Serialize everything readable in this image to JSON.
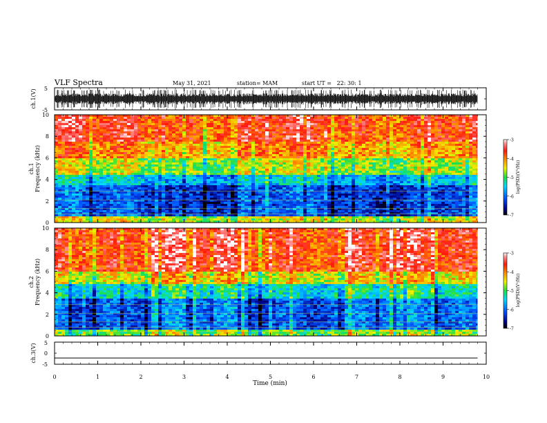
{
  "header": {
    "title": "VLF Spectra",
    "date": "May 31, 2021",
    "station": "station= MAM",
    "start": "start UT =   22: 30: 1"
  },
  "chart_data": [
    {
      "type": "line",
      "panel": "ch1-waveform",
      "ylabel": "ch.1(V)",
      "ylim": [
        -5,
        5
      ],
      "ytick_labels": [
        "5",
        "-5"
      ],
      "description_values": {
        "baseline_v": 0,
        "envelope_v": [
          -4.2,
          4.2
        ]
      }
    },
    {
      "type": "heatmap",
      "panel": "ch1-spectrogram",
      "ylabel_channel": "ch.1",
      "ylabel": "Frequency (kHz)",
      "ylim": [
        0,
        10
      ],
      "yticks": [
        0,
        2,
        4,
        6,
        8,
        10
      ],
      "colorbar": {
        "label": "log(PSD)(V²/Hz)",
        "range": [
          -7,
          -3
        ],
        "ticks": [
          -7,
          -6,
          -5,
          -4,
          -3
        ]
      },
      "band_levels": [
        {
          "freq_khz": [
            0,
            0.5
          ],
          "log_psd": -4.6
        },
        {
          "freq_khz": [
            0.5,
            3.5
          ],
          "log_psd": -6.2
        },
        {
          "freq_khz": [
            3.5,
            4.5
          ],
          "log_psd": -5.6
        },
        {
          "freq_khz": [
            4.5,
            6.0
          ],
          "log_psd": -4.7
        },
        {
          "freq_khz": [
            6.0,
            7.5
          ],
          "log_psd": -4.1
        },
        {
          "freq_khz": [
            7.5,
            10
          ],
          "log_psd": -3.7
        }
      ]
    },
    {
      "type": "heatmap",
      "panel": "ch2-spectrogram",
      "ylabel_channel": "ch.2",
      "ylabel": "Frequency (kHz)",
      "ylim": [
        0,
        10
      ],
      "yticks": [
        0,
        2,
        4,
        6,
        8,
        10
      ],
      "colorbar": {
        "label": "log(PSD)(V²/Hz)",
        "range": [
          -7,
          -3
        ],
        "ticks": [
          -7,
          -6,
          -5,
          -4,
          -3
        ]
      },
      "band_levels": [
        {
          "freq_khz": [
            0,
            0.5
          ],
          "log_psd": -4.8
        },
        {
          "freq_khz": [
            0.5,
            3.5
          ],
          "log_psd": -6.0
        },
        {
          "freq_khz": [
            3.5,
            4.8
          ],
          "log_psd": -5.3
        },
        {
          "freq_khz": [
            4.8,
            6.0
          ],
          "log_psd": -4.4
        },
        {
          "freq_khz": [
            6.0,
            10
          ],
          "log_psd": -3.6
        }
      ]
    },
    {
      "type": "line",
      "panel": "ch3-waveform",
      "ylabel": "ch.3(V)",
      "ylim": [
        -5,
        5
      ],
      "ytick_labels": [
        "5",
        "0",
        "-5"
      ],
      "series": [
        {
          "x": [
            0,
            9.8
          ],
          "y": [
            -2.2,
            -2.2
          ]
        }
      ]
    }
  ],
  "xaxis": {
    "label": "Time (min)",
    "xlim": [
      0,
      10
    ],
    "ticks": [
      "0",
      "1",
      "2",
      "3",
      "4",
      "5",
      "6",
      "7",
      "8",
      "9",
      "10"
    ]
  },
  "data_end_min": 9.8,
  "colors": {
    "frame": "#000000",
    "trace": "#000000"
  }
}
